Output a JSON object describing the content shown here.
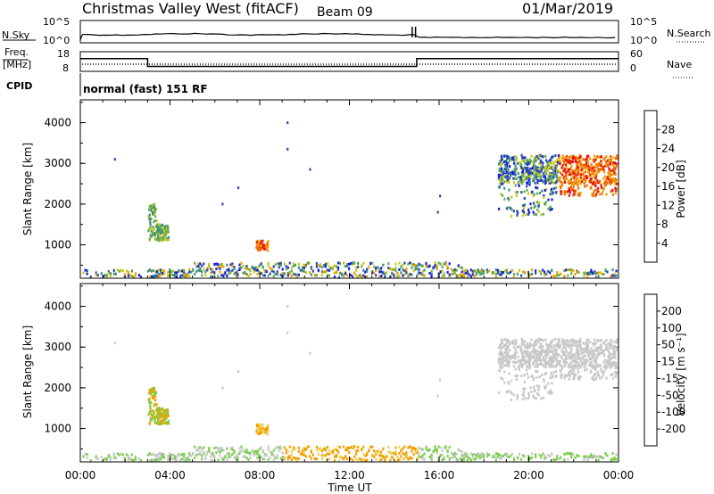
{
  "header": {
    "title": "Christmas Valley West (fitACF)",
    "beam": "Beam 09",
    "date": "01/Mar/2019"
  },
  "chart_data": [
    {
      "type": "line",
      "panel": "noise",
      "left_label": "N.Sky",
      "left_ticks": [
        "10^5",
        "10^0"
      ],
      "right_label": "N.Search",
      "right_ticks": [
        "10^5",
        "10^0"
      ],
      "description_values": {
        "sky_level_mostly_flat": true,
        "spike_times_hours": [
          14.8,
          14.95
        ]
      }
    },
    {
      "type": "line",
      "panel": "frequency",
      "left_label_lines": [
        "Freq.",
        "[MHz]"
      ],
      "left_ticks": [
        18,
        8
      ],
      "right_label": "Nave",
      "right_ticks": [
        60,
        0
      ],
      "freq_series": {
        "x_hours": [
          0,
          3.0,
          3.0,
          15.0,
          15.0,
          24
        ],
        "y_mhz": [
          14.5,
          14.5,
          10.5,
          10.5,
          14.5,
          14.5
        ]
      }
    },
    {
      "type": "table",
      "panel": "cpid",
      "label": "CPID",
      "program": "normal (fast) 151 RF"
    },
    {
      "type": "heatmap",
      "panel": "power",
      "ylabel": "Slant Range [km]",
      "yticks": [
        1000,
        2000,
        3000,
        4000
      ],
      "ylim": [
        180,
        4560
      ],
      "colorbar_label": "Power [dB]",
      "colorbar_ticks": [
        4,
        8,
        12,
        16,
        20,
        24,
        28
      ],
      "colorbar_range": [
        0,
        30
      ],
      "colors": [
        "#1a1ae6",
        "#2a4da8",
        "#3f8f7a",
        "#5fae4f",
        "#c8c81e",
        "#f0a000",
        "#f06a00",
        "#e81010"
      ]
    },
    {
      "type": "heatmap",
      "panel": "velocity",
      "ylabel": "Slant Range [km]",
      "yticks": [
        1000,
        2000,
        3000,
        4000
      ],
      "ylim": [
        180,
        4560
      ],
      "colorbar_label": "Velocity [m s⁻¹]",
      "colorbar_ticks": [
        -200,
        -100,
        -50,
        -15,
        15,
        50,
        100,
        200
      ],
      "colors": [
        "#e81010",
        "#f06a00",
        "#f0a000",
        "#f0d060",
        "#c8c8c8",
        "#7ad04a",
        "#3f8f7a",
        "#2a4da8",
        "#1a1ae6"
      ]
    }
  ],
  "xaxis": {
    "label": "Time UT",
    "ticks": [
      "00:00",
      "04:00",
      "08:00",
      "12:00",
      "16:00",
      "20:00",
      "00:00"
    ],
    "range_hours": [
      0,
      24
    ]
  }
}
